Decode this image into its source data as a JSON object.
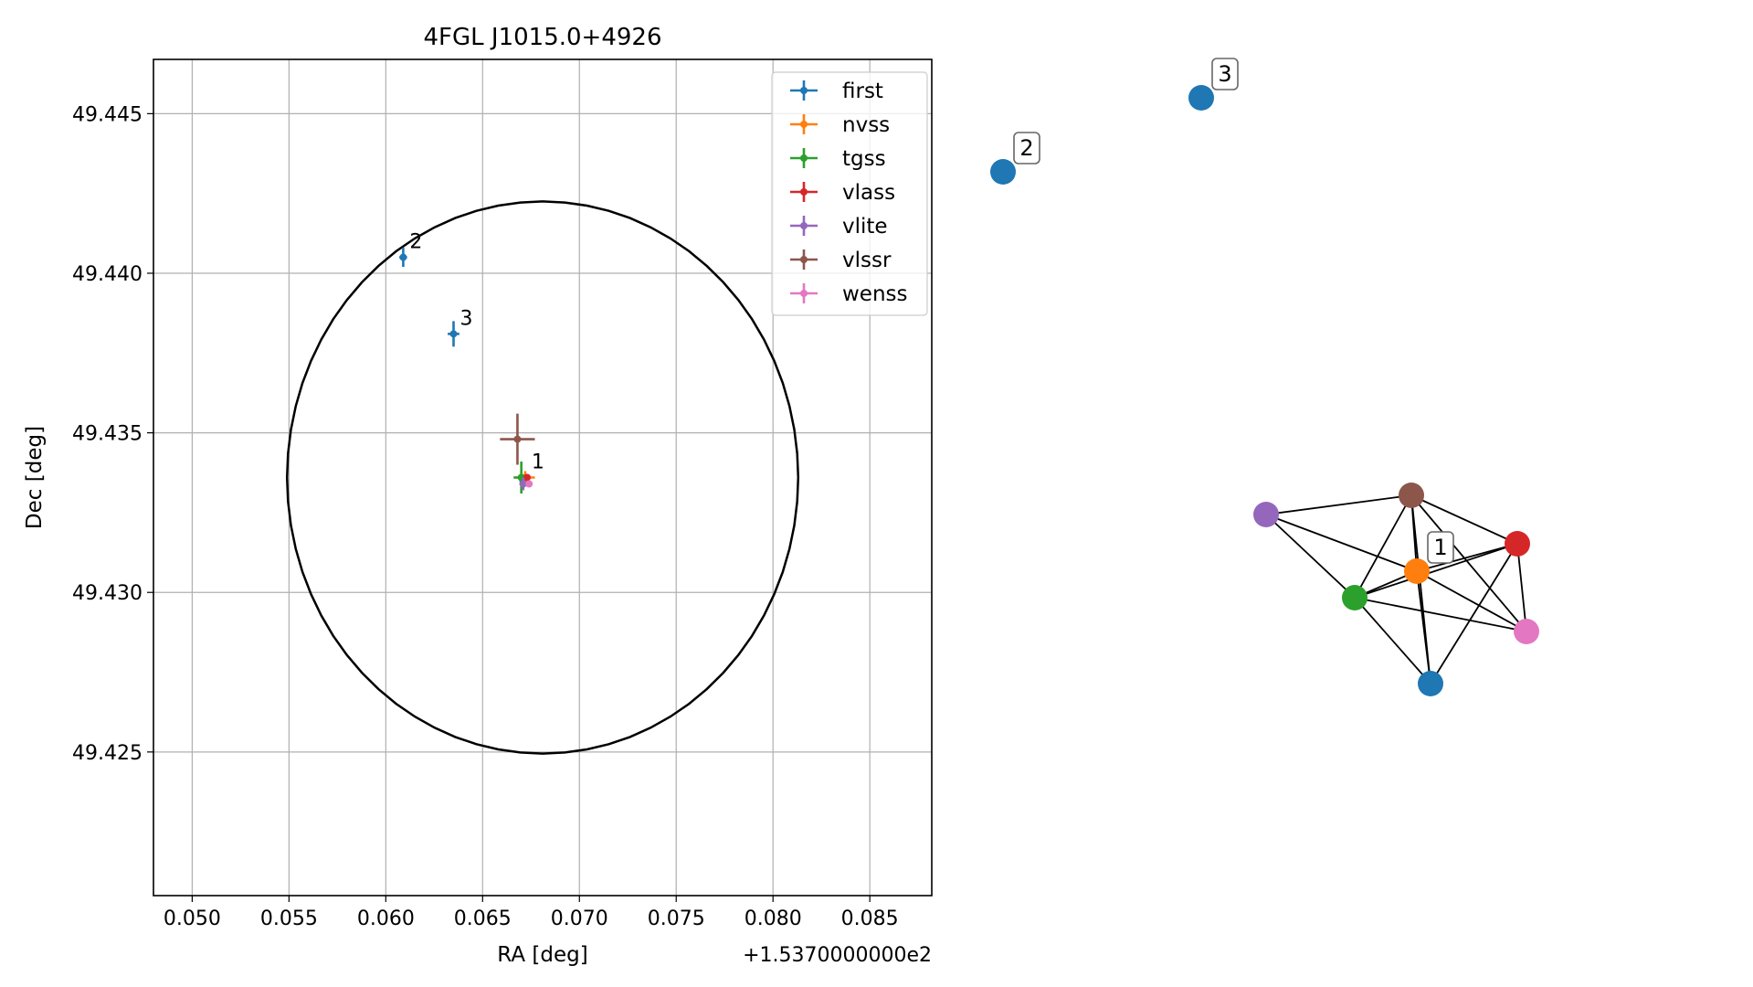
{
  "chart_data": [
    {
      "type": "scatter",
      "title": "4FGL J1015.0+4926",
      "xlabel": "RA [deg]",
      "ylabel": "Dec [deg]",
      "x_offset_label": "+1.5370000000e2",
      "xlim": [
        153.748,
        153.7882
      ],
      "ylim": [
        49.4205,
        49.4467
      ],
      "xticks": [
        153.75,
        153.755,
        153.76,
        153.765,
        153.77,
        153.775,
        153.78,
        153.785
      ],
      "xtick_labels": [
        "0.050",
        "0.055",
        "0.060",
        "0.065",
        "0.070",
        "0.075",
        "0.080",
        "0.085"
      ],
      "yticks": [
        49.425,
        49.43,
        49.435,
        49.44,
        49.445
      ],
      "ytick_labels": [
        "49.425",
        "49.430",
        "49.435",
        "49.440",
        "49.445"
      ],
      "grid": true,
      "legend_position": "top-right",
      "ellipse": {
        "center_x": 153.7681,
        "center_y": 49.4336,
        "half_width_ra": 0.0132,
        "half_height_dec": 0.00865,
        "color": "#000000"
      },
      "series": [
        {
          "name": "first",
          "color": "#1f77b4",
          "points": [
            {
              "x": 153.7609,
              "y": 49.4405,
              "xerr": 0.0002,
              "yerr": 0.0003,
              "label": "2"
            },
            {
              "x": 153.7635,
              "y": 49.4381,
              "xerr": 0.0003,
              "yerr": 0.0004,
              "label": "3"
            },
            {
              "x": 153.7671,
              "y": 49.4335,
              "xerr": 0.0002,
              "yerr": 0.0002,
              "label": ""
            }
          ]
        },
        {
          "name": "nvss",
          "color": "#ff7f0e",
          "points": [
            {
              "x": 153.7672,
              "y": 49.4336,
              "xerr": 0.0005,
              "yerr": 0.0002,
              "label": "1"
            }
          ]
        },
        {
          "name": "tgss",
          "color": "#2ca02c",
          "points": [
            {
              "x": 153.767,
              "y": 49.4336,
              "xerr": 0.0004,
              "yerr": 0.0005
            }
          ]
        },
        {
          "name": "vlass",
          "color": "#d62728",
          "points": [
            {
              "x": 153.7673,
              "y": 49.4336,
              "xerr": 0.0001,
              "yerr": 0.0001
            }
          ]
        },
        {
          "name": "vlite",
          "color": "#9467bd",
          "points": [
            {
              "x": 153.7671,
              "y": 49.4334,
              "xerr": 0.0002,
              "yerr": 0.0002
            }
          ]
        },
        {
          "name": "vlssr",
          "color": "#8c564b",
          "points": [
            {
              "x": 153.7668,
              "y": 49.4348,
              "xerr": 0.0009,
              "yerr": 0.0008
            }
          ]
        },
        {
          "name": "wenss",
          "color": "#e377c2",
          "points": [
            {
              "x": 153.7674,
              "y": 49.4334,
              "xerr": 0.0001,
              "yerr": 0.0001
            }
          ]
        }
      ]
    },
    {
      "type": "network",
      "nodes": [
        {
          "id": "first-2",
          "color": "#1f77b4",
          "label": "2"
        },
        {
          "id": "first-3",
          "color": "#1f77b4",
          "label": "3"
        },
        {
          "id": "vlite",
          "color": "#9467bd",
          "label": ""
        },
        {
          "id": "vlssr",
          "color": "#8c564b",
          "label": ""
        },
        {
          "id": "vlass",
          "color": "#d62728",
          "label": ""
        },
        {
          "id": "nvss",
          "color": "#ff7f0e",
          "label": "1"
        },
        {
          "id": "tgss",
          "color": "#2ca02c",
          "label": ""
        },
        {
          "id": "wenss",
          "color": "#e377c2",
          "label": ""
        },
        {
          "id": "first-1",
          "color": "#1f77b4",
          "label": ""
        }
      ],
      "edges": [
        [
          "vlite",
          "vlssr"
        ],
        [
          "vlite",
          "nvss"
        ],
        [
          "vlite",
          "tgss"
        ],
        [
          "vlssr",
          "vlass"
        ],
        [
          "vlssr",
          "nvss"
        ],
        [
          "vlssr",
          "tgss"
        ],
        [
          "vlssr",
          "wenss"
        ],
        [
          "vlssr",
          "first-1"
        ],
        [
          "vlass",
          "nvss"
        ],
        [
          "vlass",
          "tgss"
        ],
        [
          "vlass",
          "wenss"
        ],
        [
          "vlass",
          "first-1"
        ],
        [
          "nvss",
          "tgss"
        ],
        [
          "nvss",
          "wenss"
        ],
        [
          "nvss",
          "first-1"
        ],
        [
          "tgss",
          "wenss"
        ],
        [
          "tgss",
          "first-1"
        ]
      ]
    }
  ]
}
